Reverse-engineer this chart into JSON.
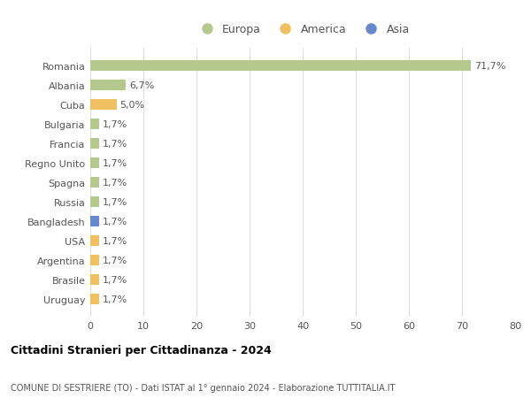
{
  "categories": [
    "Romania",
    "Albania",
    "Cuba",
    "Bulgaria",
    "Francia",
    "Regno Unito",
    "Spagna",
    "Russia",
    "Bangladesh",
    "USA",
    "Argentina",
    "Brasile",
    "Uruguay"
  ],
  "values": [
    71.7,
    6.7,
    5.0,
    1.7,
    1.7,
    1.7,
    1.7,
    1.7,
    1.7,
    1.7,
    1.7,
    1.7,
    1.7
  ],
  "labels": [
    "71,7%",
    "6,7%",
    "5,0%",
    "1,7%",
    "1,7%",
    "1,7%",
    "1,7%",
    "1,7%",
    "1,7%",
    "1,7%",
    "1,7%",
    "1,7%",
    "1,7%"
  ],
  "colors": [
    "#b5c98e",
    "#b5c98e",
    "#f0c060",
    "#b5c98e",
    "#b5c98e",
    "#b5c98e",
    "#b5c98e",
    "#b5c98e",
    "#6688cc",
    "#f0c060",
    "#f0c060",
    "#f0c060",
    "#f0c060"
  ],
  "legend_labels": [
    "Europa",
    "America",
    "Asia"
  ],
  "legend_colors": [
    "#b5c98e",
    "#f0c060",
    "#6688cc"
  ],
  "xlim": [
    0,
    80
  ],
  "xticks": [
    0,
    10,
    20,
    30,
    40,
    50,
    60,
    70,
    80
  ],
  "title": "Cittadini Stranieri per Cittadinanza - 2024",
  "subtitle": "COMUNE DI SESTRIERE (TO) - Dati ISTAT al 1° gennaio 2024 - Elaborazione TUTTITALIA.IT",
  "background_color": "#ffffff",
  "grid_color": "#dddddd",
  "bar_height": 0.55,
  "label_fontsize": 8.0,
  "ytick_fontsize": 8.0,
  "xtick_fontsize": 8.0
}
